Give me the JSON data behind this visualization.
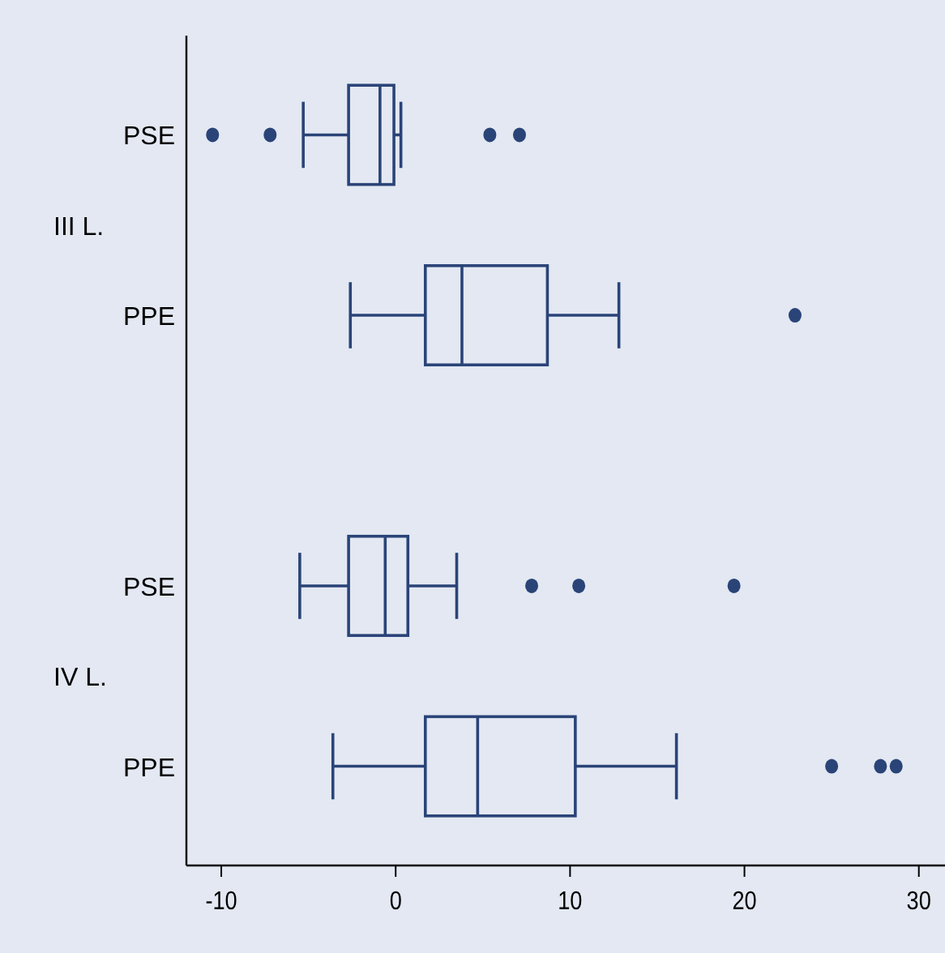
{
  "chart_data": {
    "type": "box",
    "orientation": "horizontal",
    "categories": [
      "PSE",
      "PPE",
      "PSE",
      "PPE"
    ],
    "annotations": [
      "III L.",
      "IV L."
    ],
    "color": "#2a4478",
    "boxes": [
      {
        "low": -5.3,
        "q1": -2.7,
        "median": -0.9,
        "q3": -0.1,
        "high": 0.3,
        "outliers": [
          -10.5,
          -7.2,
          5.4,
          7.1
        ]
      },
      {
        "low": -2.6,
        "q1": 1.7,
        "median": 3.8,
        "q3": 8.7,
        "high": 12.8,
        "outliers": [
          22.9
        ]
      },
      {
        "low": -5.5,
        "q1": -2.7,
        "median": -0.6,
        "q3": 0.7,
        "high": 3.5,
        "outliers": [
          7.8,
          10.5,
          19.4
        ]
      },
      {
        "low": -3.6,
        "q1": 1.7,
        "median": 4.7,
        "q3": 10.3,
        "high": 16.1,
        "outliers": [
          25.0,
          27.8,
          28.7
        ]
      }
    ],
    "xlim": [
      -12,
      31.5
    ],
    "xticks": [
      -10,
      0,
      10,
      20,
      30
    ],
    "grid": false
  }
}
